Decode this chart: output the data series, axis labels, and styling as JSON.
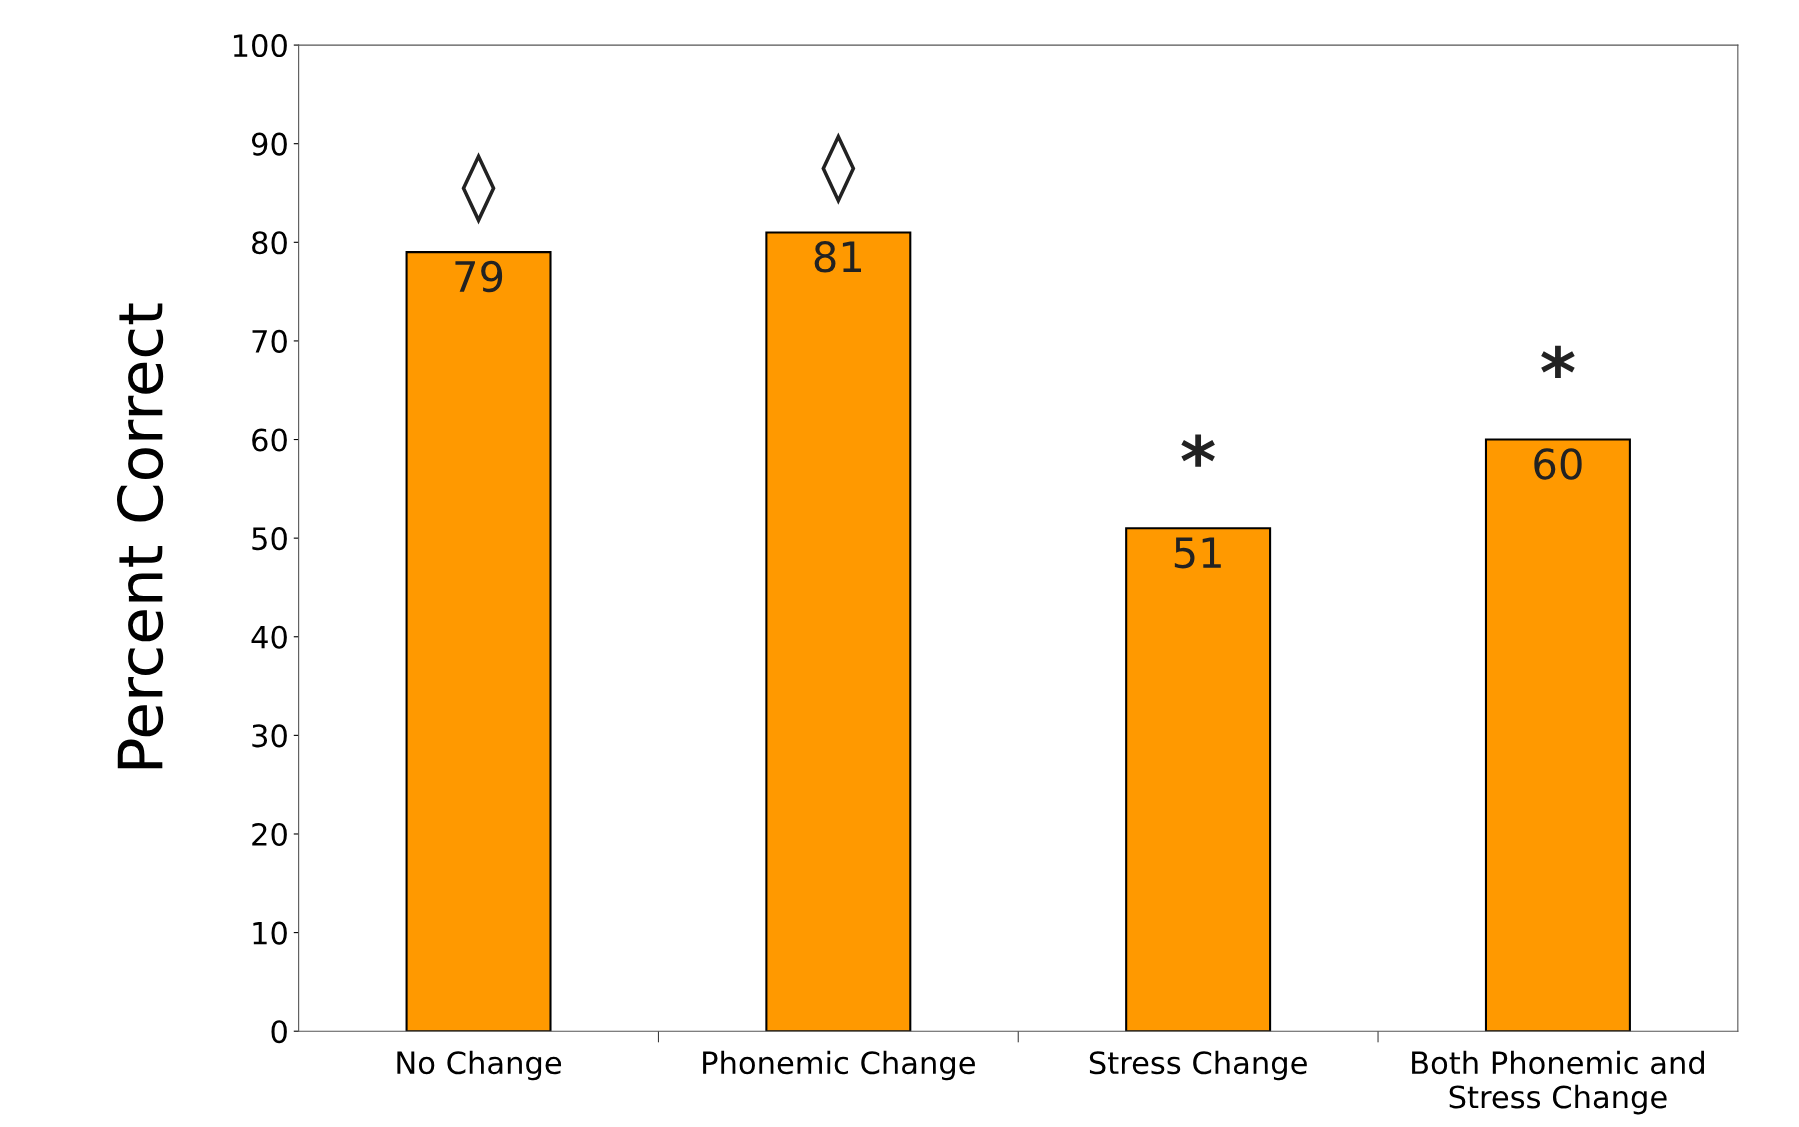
{
  "chart_data": {
    "type": "bar",
    "ylabel": "Percent Correct",
    "categories": [
      "No Change",
      "Phonemic Change",
      "Stress Change",
      "Both Phonemic and\nStress Change"
    ],
    "values": [
      79,
      81,
      51,
      60
    ],
    "color": "#ff9900",
    "data_labels": true,
    "ylim": [
      0,
      100
    ],
    "yticks": [
      0,
      10,
      20,
      30,
      40,
      50,
      60,
      70,
      80,
      90,
      100
    ],
    "grid": false,
    "legend": false,
    "annotations": [
      "◊",
      "◊",
      "*",
      "*"
    ]
  }
}
